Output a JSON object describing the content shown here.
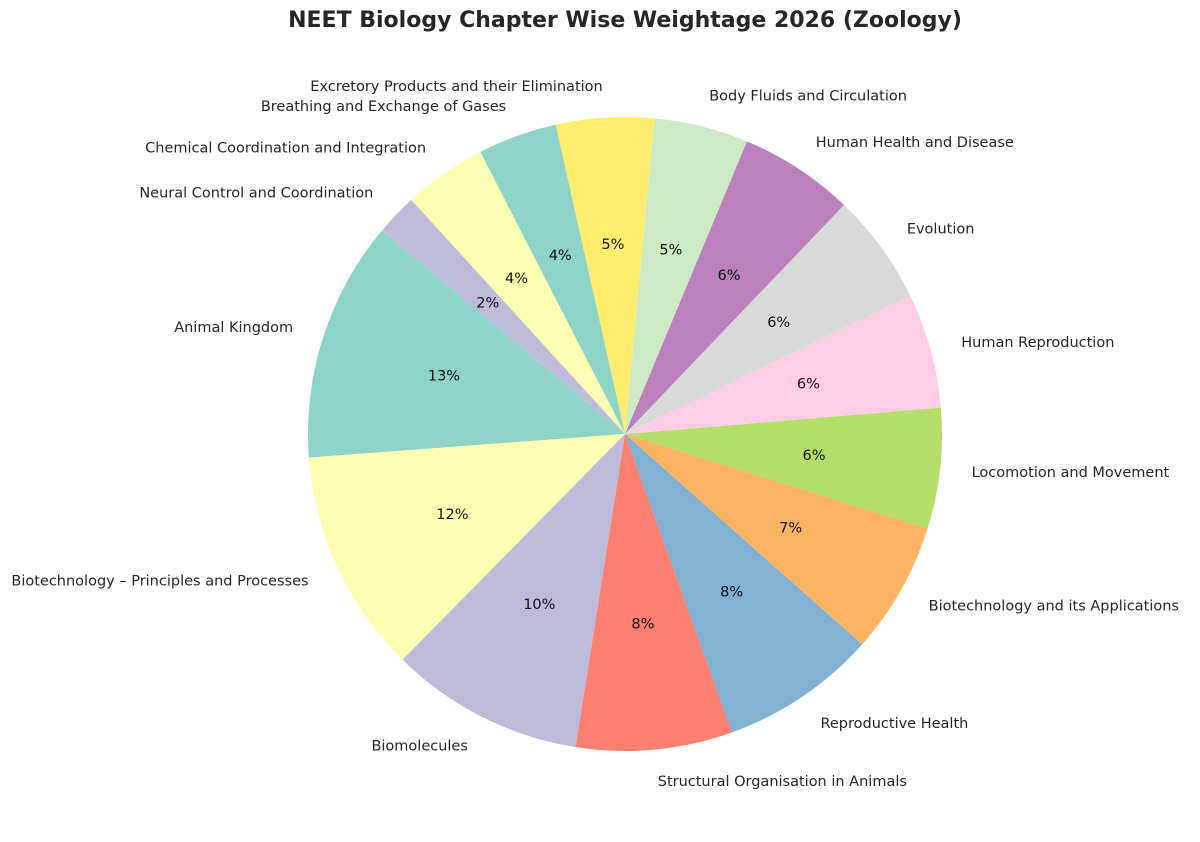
{
  "chart_data": {
    "type": "pie",
    "title": "NEET Biology Chapter Wise Weightage 2026 (Zoology)",
    "start_angle_deg": 140,
    "counterclockwise": true,
    "slices": [
      {
        "label": "Animal Kingdom",
        "value": 12.8,
        "pct_label": "13%",
        "color": "#8dd3c7"
      },
      {
        "label": "Biotechnology – Principles and Processes",
        "value": 11.9,
        "pct_label": "12%",
        "color": "#ffffb3"
      },
      {
        "label": "Biomolecules",
        "value": 10.3,
        "pct_label": "10%",
        "color": "#bebada"
      },
      {
        "label": "Structural Organisation in Animals",
        "value": 8.3,
        "pct_label": "8%",
        "color": "#fb8072"
      },
      {
        "label": "Reproductive Health",
        "value": 8.3,
        "pct_label": "8%",
        "color": "#80b1d3"
      },
      {
        "label": "Biotechnology and its Applications",
        "value": 7.0,
        "pct_label": "7%",
        "color": "#fdb462"
      },
      {
        "label": "Locomotion and Movement",
        "value": 6.4,
        "pct_label": "6%",
        "color": "#b3de69"
      },
      {
        "label": "Human Reproduction",
        "value": 6.1,
        "pct_label": "6%",
        "color": "#fccde5"
      },
      {
        "label": "Evolution",
        "value": 5.9,
        "pct_label": "6%",
        "color": "#d9d9d9"
      },
      {
        "label": "Human Health and Disease",
        "value": 6.1,
        "pct_label": "6%",
        "color": "#bc80bd"
      },
      {
        "label": "Body Fluids and Circulation",
        "value": 5.0,
        "pct_label": "5%",
        "color": "#ccebc5"
      },
      {
        "label": "Excretory Products and their Elimination",
        "value": 5.2,
        "pct_label": "5%",
        "color": "#ffed6f"
      },
      {
        "label": "Breathing and Exchange of Gases",
        "value": 4.2,
        "pct_label": "4%",
        "color": "#8dd3c7"
      },
      {
        "label": "Chemical Coordination and Integration",
        "value": 4.4,
        "pct_label": "4%",
        "color": "#ffffb3"
      },
      {
        "label": "Neural Control and Coordination",
        "value": 2.2,
        "pct_label": "2%",
        "color": "#bebada"
      }
    ]
  }
}
